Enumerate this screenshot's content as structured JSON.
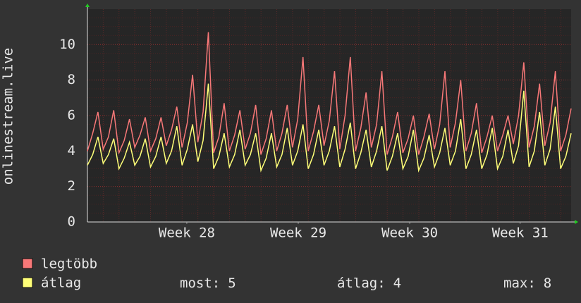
{
  "chart_data": {
    "type": "line",
    "ylabel": "onlinestream.live",
    "xlim": [
      0,
      92
    ],
    "xticks": [
      {
        "value": 18.9,
        "label": "Week 28"
      },
      {
        "value": 40.1,
        "label": "Week 29"
      },
      {
        "value": 61.3,
        "label": "Week 30"
      },
      {
        "value": 82.3,
        "label": "Week 31"
      }
    ],
    "ylim": [
      0,
      12
    ],
    "yticks": [
      0,
      2,
      4,
      6,
      8,
      10
    ],
    "grid": true,
    "series": [
      {
        "name": "legtöbb",
        "color": "#f87878",
        "values": [
          4.0,
          5.0,
          6.2,
          4.1,
          4.8,
          6.3,
          3.9,
          4.6,
          5.8,
          4.2,
          4.9,
          5.9,
          4.0,
          4.7,
          5.9,
          4.3,
          5.2,
          6.5,
          4.2,
          5.6,
          8.3,
          4.5,
          6.2,
          10.7,
          3.9,
          4.8,
          6.7,
          4.0,
          4.9,
          6.3,
          4.1,
          5.0,
          6.6,
          3.8,
          4.7,
          6.3,
          4.0,
          5.0,
          6.6,
          4.2,
          5.8,
          9.3,
          4.0,
          5.1,
          6.6,
          4.3,
          5.7,
          8.5,
          4.1,
          6.0,
          9.3,
          4.0,
          5.3,
          7.3,
          4.2,
          5.5,
          8.5,
          3.8,
          4.8,
          6.2,
          3.9,
          4.7,
          6.0,
          3.8,
          4.8,
          6.1,
          4.1,
          5.5,
          8.5,
          4.2,
          5.6,
          8.0,
          4.0,
          5.0,
          6.7,
          3.9,
          4.8,
          6.0,
          4.0,
          4.9,
          6.0,
          4.4,
          6.0,
          9.0,
          4.2,
          5.4,
          7.8,
          4.3,
          5.6,
          8.5,
          4.0,
          4.9,
          6.4
        ]
      },
      {
        "name": "átlag",
        "color": "#ffff78",
        "values": [
          3.2,
          3.8,
          4.8,
          3.3,
          3.8,
          4.7,
          3.0,
          3.6,
          4.5,
          3.2,
          3.7,
          4.7,
          3.1,
          3.7,
          4.8,
          3.3,
          4.0,
          5.4,
          3.2,
          4.1,
          5.5,
          3.4,
          4.6,
          7.8,
          3.0,
          3.7,
          5.0,
          3.1,
          3.8,
          5.2,
          3.2,
          3.8,
          5.0,
          2.9,
          3.6,
          5.0,
          3.1,
          3.8,
          5.3,
          3.2,
          4.0,
          5.5,
          3.0,
          3.8,
          5.2,
          3.2,
          4.0,
          5.4,
          3.1,
          4.1,
          5.6,
          3.0,
          3.9,
          5.2,
          3.1,
          4.0,
          5.4,
          2.9,
          3.7,
          5.0,
          3.0,
          3.7,
          5.2,
          2.9,
          3.6,
          4.9,
          3.1,
          3.9,
          5.3,
          3.2,
          4.0,
          5.8,
          3.0,
          3.8,
          5.2,
          3.0,
          3.8,
          5.3,
          3.0,
          3.7,
          5.2,
          3.3,
          4.3,
          7.4,
          3.1,
          4.0,
          6.2,
          3.2,
          4.1,
          6.5,
          3.0,
          3.7,
          5.0
        ]
      }
    ],
    "stats": [
      {
        "label": "most:",
        "value": 5
      },
      {
        "label": "átlag:",
        "value": 4
      },
      {
        "label": "max:",
        "value": 8
      }
    ]
  }
}
